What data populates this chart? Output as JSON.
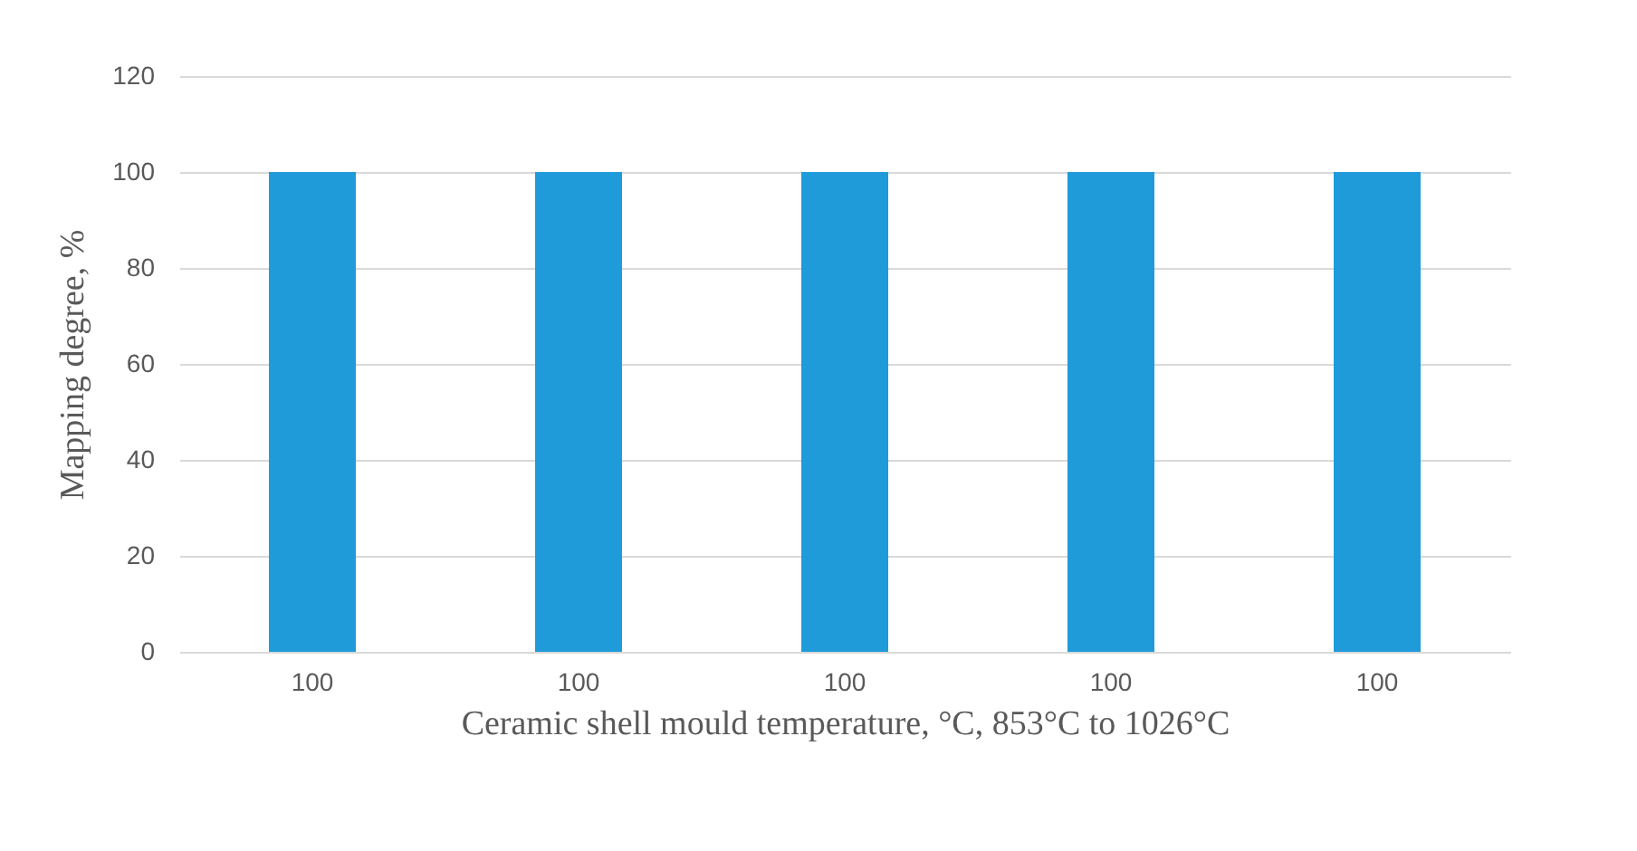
{
  "chart_data": {
    "type": "bar",
    "xlabel": "Ceramic shell mould temperature, °C, 853°C to 1026°C",
    "ylabel": "Mapping degree, %",
    "categories": [
      "100",
      "100",
      "100",
      "100",
      "100"
    ],
    "values": [
      100,
      100,
      100,
      100,
      100
    ],
    "color": "#1f9bd9",
    "ylim": [
      0,
      120
    ],
    "yticks": [
      0,
      20,
      40,
      60,
      80,
      100,
      120
    ],
    "grid": "y"
  }
}
